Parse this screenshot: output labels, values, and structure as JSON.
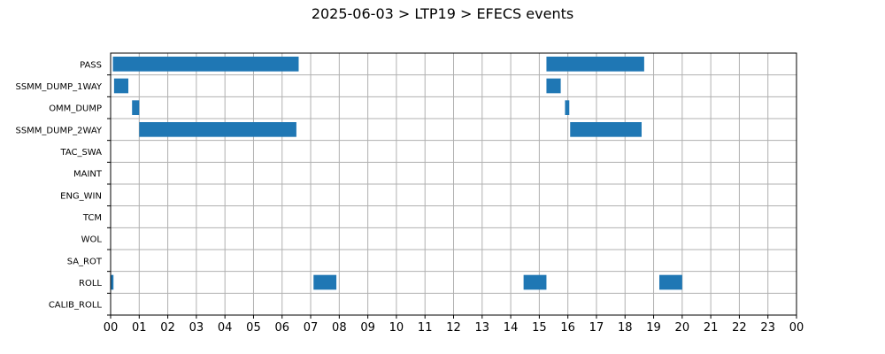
{
  "chart_data": {
    "type": "bar",
    "orientation": "horizontal",
    "title": "2025-06-03 > LTP19 > EFECS events",
    "xlabel": "",
    "ylabel": "",
    "x_unit": "hours",
    "xlim": [
      0,
      24
    ],
    "x_tick_labels": [
      "00",
      "01",
      "02",
      "03",
      "04",
      "05",
      "06",
      "07",
      "08",
      "09",
      "10",
      "11",
      "12",
      "13",
      "14",
      "15",
      "16",
      "17",
      "18",
      "19",
      "20",
      "21",
      "22",
      "23",
      "00"
    ],
    "categories": [
      "PASS",
      "SSMM_DUMP_1WAY",
      "OMM_DUMP",
      "SSMM_DUMP_2WAY",
      "TAC_SWA",
      "MAINT",
      "ENG_WIN",
      "TCM",
      "WOL",
      "SA_ROT",
      "ROLL",
      "CALIB_ROLL"
    ],
    "grid": true,
    "bar_color": "#1f77b4",
    "events": [
      {
        "category": "PASS",
        "start": 0.08,
        "end": 6.58
      },
      {
        "category": "PASS",
        "start": 15.25,
        "end": 18.67
      },
      {
        "category": "SSMM_DUMP_1WAY",
        "start": 0.12,
        "end": 0.62
      },
      {
        "category": "SSMM_DUMP_1WAY",
        "start": 15.25,
        "end": 15.75
      },
      {
        "category": "OMM_DUMP",
        "start": 0.75,
        "end": 1.0
      },
      {
        "category": "OMM_DUMP",
        "start": 15.9,
        "end": 16.05
      },
      {
        "category": "SSMM_DUMP_2WAY",
        "start": 1.0,
        "end": 6.5
      },
      {
        "category": "SSMM_DUMP_2WAY",
        "start": 16.08,
        "end": 18.58
      },
      {
        "category": "ROLL",
        "start": 0.0,
        "end": 0.1
      },
      {
        "category": "ROLL",
        "start": 7.1,
        "end": 7.9
      },
      {
        "category": "ROLL",
        "start": 14.45,
        "end": 15.25
      },
      {
        "category": "ROLL",
        "start": 19.2,
        "end": 20.0
      }
    ]
  }
}
